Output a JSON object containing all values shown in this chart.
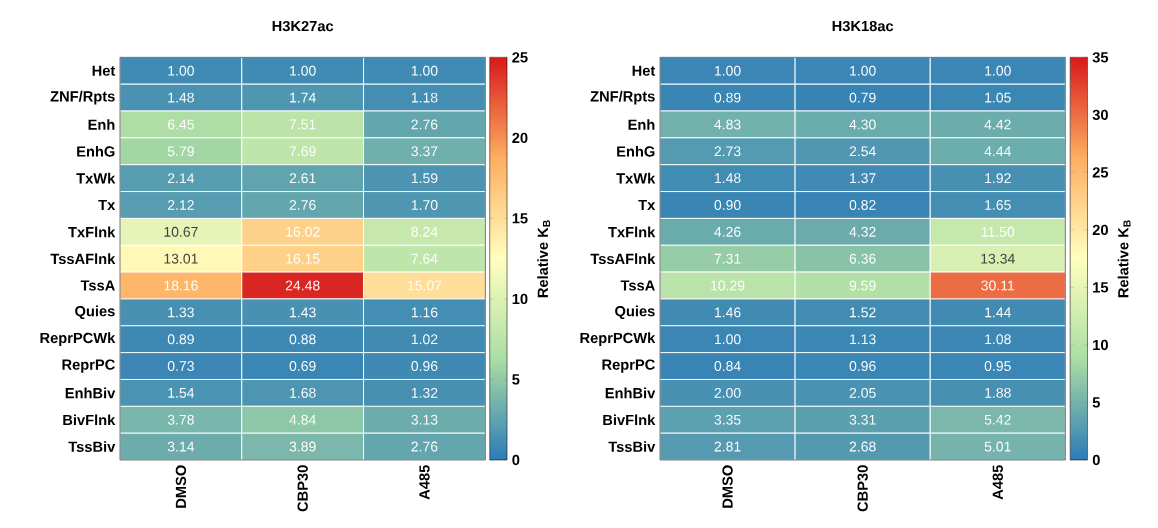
{
  "chart_data": [
    {
      "type": "heatmap",
      "title": "H3K27ac",
      "clabel": "Relative K$_{B}$",
      "categories": [
        "DMSO",
        "CBP30",
        "A485"
      ],
      "y_categories": [
        "Het",
        "ZNF/Rpts",
        "Enh",
        "EnhG",
        "TxWk",
        "Tx",
        "TxFlnk",
        "TssAFlnk",
        "TssA",
        "Quies",
        "ReprPCWk",
        "ReprPC",
        "EnhBiv",
        "BivFlnk",
        "TssBiv"
      ],
      "cells": [
        [
          1.0,
          1.0,
          1.0
        ],
        [
          1.48,
          1.74,
          1.18
        ],
        [
          6.45,
          7.51,
          2.76
        ],
        [
          5.79,
          7.69,
          3.37
        ],
        [
          2.14,
          2.61,
          1.59
        ],
        [
          2.12,
          2.76,
          1.7
        ],
        [
          10.67,
          16.02,
          8.24
        ],
        [
          13.01,
          16.15,
          7.64
        ],
        [
          18.16,
          24.48,
          15.07
        ],
        [
          1.33,
          1.43,
          1.16
        ],
        [
          0.89,
          0.88,
          1.02
        ],
        [
          0.73,
          0.69,
          0.96
        ],
        [
          1.54,
          1.68,
          1.32
        ],
        [
          3.78,
          4.84,
          3.13
        ],
        [
          3.14,
          3.89,
          2.76
        ]
      ],
      "cell_labels": [
        [
          "1.00",
          "1.00",
          "1.00"
        ],
        [
          "1.48",
          "1.74",
          "1.18"
        ],
        [
          "6.45",
          "7.51",
          "2.76"
        ],
        [
          "5.79",
          "7.69",
          "3.37"
        ],
        [
          "2.14",
          "2.61",
          "1.59"
        ],
        [
          "2.12",
          "2.76",
          "1.70"
        ],
        [
          "10.67",
          "16.02",
          "8.24"
        ],
        [
          "13.01",
          "16.15",
          "7.64"
        ],
        [
          "18.16",
          "24.48",
          "15.07"
        ],
        [
          "1.33",
          "1.43",
          "1.16"
        ],
        [
          "0.89",
          "0.88",
          "1.02"
        ],
        [
          "0.73",
          "0.69",
          "0.96"
        ],
        [
          "1.54",
          "1.68",
          "1.32"
        ],
        [
          "3.78",
          "4.84",
          "3.13"
        ],
        [
          "3.14",
          "3.89",
          "2.76"
        ]
      ],
      "clim": [
        0,
        25
      ],
      "cticks": [
        0,
        5,
        10,
        15,
        20,
        25
      ]
    },
    {
      "type": "heatmap",
      "title": "H3K18ac",
      "clabel": "Relative K$_{B}$",
      "categories": [
        "DMSO",
        "CBP30",
        "A485"
      ],
      "y_categories": [
        "Het",
        "ZNF/Rpts",
        "Enh",
        "EnhG",
        "TxWk",
        "Tx",
        "TxFlnk",
        "TssAFlnk",
        "TssA",
        "Quies",
        "ReprPCWk",
        "ReprPC",
        "EnhBiv",
        "BivFlnk",
        "TssBiv"
      ],
      "cells": [
        [
          1.0,
          1.0,
          1.0
        ],
        [
          0.89,
          0.79,
          1.05
        ],
        [
          4.83,
          4.3,
          4.42
        ],
        [
          2.73,
          2.54,
          4.44
        ],
        [
          1.48,
          1.37,
          1.92
        ],
        [
          0.9,
          0.82,
          1.65
        ],
        [
          4.26,
          4.32,
          11.5
        ],
        [
          7.31,
          6.36,
          13.34
        ],
        [
          10.29,
          9.59,
          30.11
        ],
        [
          1.46,
          1.52,
          1.44
        ],
        [
          1.0,
          1.13,
          1.08
        ],
        [
          0.84,
          0.96,
          0.95
        ],
        [
          2.0,
          2.05,
          1.88
        ],
        [
          3.35,
          3.31,
          5.42
        ],
        [
          2.81,
          2.68,
          5.01
        ]
      ],
      "cell_labels": [
        [
          "1.00",
          "1.00",
          "1.00"
        ],
        [
          "0.89",
          "0.79",
          "1.05"
        ],
        [
          "4.83",
          "4.30",
          "4.42"
        ],
        [
          "2.73",
          "2.54",
          "4.44"
        ],
        [
          "1.48",
          "1.37",
          "1.92"
        ],
        [
          "0.90",
          "0.82",
          "1.65"
        ],
        [
          "4.26",
          "4.32",
          "11.50"
        ],
        [
          "7.31",
          "6.36",
          "13.34"
        ],
        [
          "10.29",
          "9.59",
          "30.11"
        ],
        [
          "1.46",
          "1.52",
          "1.44"
        ],
        [
          "1.00",
          "1.13",
          "1.08"
        ],
        [
          "0.84",
          "0.96",
          "0.95"
        ],
        [
          "2.00",
          "2.05",
          "1.88"
        ],
        [
          "3.35",
          "3.31",
          "5.42"
        ],
        [
          "2.81",
          "2.68",
          "5.01"
        ]
      ],
      "clim": [
        0,
        35
      ],
      "cticks": [
        0,
        5,
        10,
        15,
        20,
        25,
        30,
        35
      ]
    }
  ]
}
